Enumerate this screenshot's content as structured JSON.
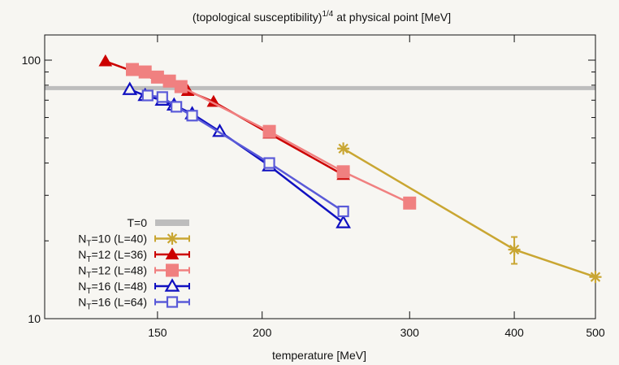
{
  "chart_data": {
    "type": "line",
    "title": "(topological susceptibility)",
    "title_sup": "1/4",
    "title_suffix": " at physical point [MeV]",
    "xlabel": "temperature [MeV]",
    "ylabel": "",
    "xscale": "log",
    "yscale": "log",
    "xlim": [
      110,
      500
    ],
    "ylim": [
      10,
      100
    ],
    "x_ticks": [
      150,
      200,
      300,
      400,
      500
    ],
    "x_tick_labels": [
      "150",
      "200",
      "300",
      "400",
      "500"
    ],
    "y_major_ticks": [
      10,
      100
    ],
    "y_tick_labels": [
      "10",
      "100"
    ],
    "y_minor_ticks": [
      20,
      30,
      40,
      50,
      60,
      70,
      80,
      90
    ],
    "legend_position": "bottom-left",
    "reference_line": {
      "name": "T=0",
      "y": 78,
      "color": "#bdbdbd"
    },
    "series": [
      {
        "name": "10 (L=40)",
        "label_prefix": "N",
        "label_sub": "T",
        "label_rest": "=10 (L=40)",
        "color": "#c9a632",
        "marker": "star",
        "points": [
          {
            "x": 250,
            "y": 45.5
          },
          {
            "x": 400,
            "y": 18.5,
            "err": 2.2
          },
          {
            "x": 500,
            "y": 14.5
          }
        ]
      },
      {
        "name": "12 (L=36)",
        "label_prefix": "N",
        "label_sub": "T",
        "label_rest": "=12 (L=36)",
        "color": "#cc0000",
        "marker": "triangle-filled",
        "points": [
          {
            "x": 130,
            "y": 99
          },
          {
            "x": 163,
            "y": 76
          },
          {
            "x": 175,
            "y": 69
          },
          {
            "x": 204,
            "y": 52
          },
          {
            "x": 250,
            "y": 36
          }
        ]
      },
      {
        "name": "12 (L=48)",
        "label_prefix": "N",
        "label_sub": "T",
        "label_rest": "=12 (L=48)",
        "color": "#f08080",
        "marker": "square-filled",
        "points": [
          {
            "x": 140,
            "y": 92
          },
          {
            "x": 145,
            "y": 90
          },
          {
            "x": 150,
            "y": 86
          },
          {
            "x": 155,
            "y": 83
          },
          {
            "x": 160,
            "y": 79
          },
          {
            "x": 204,
            "y": 53
          },
          {
            "x": 250,
            "y": 37
          },
          {
            "x": 300,
            "y": 28
          }
        ]
      },
      {
        "name": "16 (L=48)",
        "label_prefix": "N",
        "label_sub": "T",
        "label_rest": "=16 (L=48)",
        "color": "#1010c0",
        "marker": "triangle-open",
        "points": [
          {
            "x": 139,
            "y": 77
          },
          {
            "x": 145,
            "y": 73
          },
          {
            "x": 152,
            "y": 70
          },
          {
            "x": 157,
            "y": 67
          },
          {
            "x": 165,
            "y": 62
          },
          {
            "x": 178,
            "y": 53
          },
          {
            "x": 204,
            "y": 39
          },
          {
            "x": 250,
            "y": 23.5
          }
        ]
      },
      {
        "name": "16 (L=64)",
        "label_prefix": "N",
        "label_sub": "T",
        "label_rest": "=16 (L=64)",
        "color": "#5a5ad8",
        "marker": "square-open",
        "points": [
          {
            "x": 146,
            "y": 73
          },
          {
            "x": 152,
            "y": 72
          },
          {
            "x": 158,
            "y": 66
          },
          {
            "x": 165,
            "y": 61
          },
          {
            "x": 204,
            "y": 40
          },
          {
            "x": 250,
            "y": 26
          }
        ]
      }
    ]
  }
}
